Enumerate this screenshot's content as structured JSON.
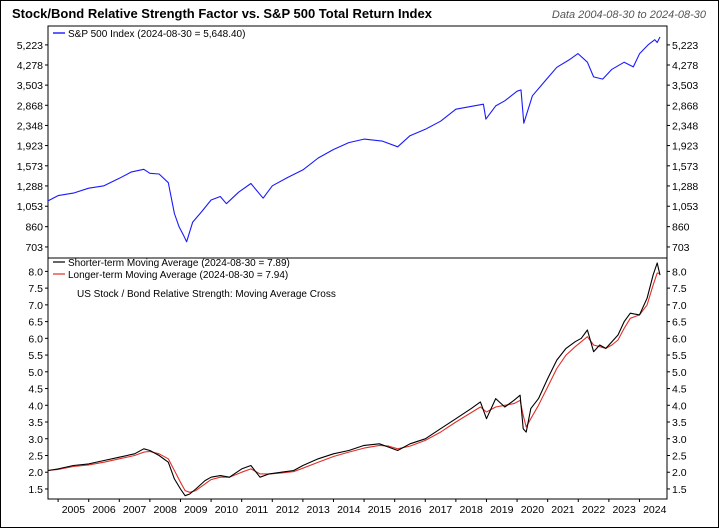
{
  "header": {
    "title": "Stock/Bond Relative Strength Factor vs. S&P 500 Total Return Index",
    "date_range": "Data 2004-08-30 to 2024-08-30"
  },
  "chart_data": [
    {
      "type": "line",
      "panel": "top",
      "yscale": "log",
      "ylim": [
        630,
        6300
      ],
      "yticks": [
        703,
        860,
        1053,
        1288,
        1573,
        1923,
        2348,
        2868,
        3503,
        4278,
        5223
      ],
      "series": [
        {
          "name": "S&P 500 Index (2024-08-30 = 5,648.40)",
          "color": "#1a1aff",
          "x": [
            2004.67,
            2005.0,
            2005.5,
            2006.0,
            2006.5,
            2007.0,
            2007.4,
            2007.8,
            2008.0,
            2008.3,
            2008.6,
            2008.8,
            2008.95,
            2009.1,
            2009.2,
            2009.4,
            2009.7,
            2010.0,
            2010.3,
            2010.5,
            2010.9,
            2011.3,
            2011.7,
            2012.0,
            2012.5,
            2013.0,
            2013.5,
            2014.0,
            2014.5,
            2015.0,
            2015.6,
            2016.1,
            2016.5,
            2017.0,
            2017.5,
            2018.0,
            2018.9,
            2018.98,
            2019.3,
            2019.6,
            2020.0,
            2020.13,
            2020.22,
            2020.5,
            2020.9,
            2021.3,
            2021.7,
            2021.99,
            2022.3,
            2022.5,
            2022.8,
            2023.1,
            2023.5,
            2023.8,
            2024.0,
            2024.3,
            2024.5,
            2024.58,
            2024.67
          ],
          "values": [
            1110,
            1170,
            1200,
            1260,
            1290,
            1390,
            1480,
            1520,
            1460,
            1450,
            1330,
            980,
            860,
            790,
            740,
            900,
            1000,
            1120,
            1160,
            1080,
            1210,
            1320,
            1140,
            1290,
            1400,
            1510,
            1700,
            1850,
            1980,
            2050,
            2010,
            1900,
            2120,
            2260,
            2450,
            2760,
            2900,
            2500,
            2850,
            3000,
            3300,
            3340,
            2400,
            3150,
            3630,
            4180,
            4500,
            4790,
            4400,
            3800,
            3720,
            4100,
            4400,
            4200,
            4780,
            5250,
            5500,
            5350,
            5650
          ]
        }
      ]
    },
    {
      "type": "line",
      "panel": "bottom",
      "annotation": "US Stock / Bond Relative Strength: Moving Average Cross",
      "ylim": [
        1.2,
        8.4
      ],
      "yticks": [
        1.5,
        2.0,
        2.5,
        3.0,
        3.5,
        4.0,
        4.5,
        5.0,
        5.5,
        6.0,
        6.5,
        7.0,
        7.5,
        8.0
      ],
      "x_range": [
        2004.67,
        2024.9
      ],
      "xticks": [
        "2005",
        "2006",
        "2007",
        "2008",
        "2009",
        "2010",
        "2011",
        "2012",
        "2013",
        "2014",
        "2015",
        "2016",
        "2017",
        "2018",
        "2019",
        "2020",
        "2021",
        "2022",
        "2023",
        "2024"
      ],
      "series": [
        {
          "name": "Shorter-term Moving Average (2024-08-30 = 7.89)",
          "color": "#000000",
          "x": [
            2004.67,
            2005.0,
            2005.5,
            2006.0,
            2006.5,
            2007.0,
            2007.5,
            2007.8,
            2008.0,
            2008.3,
            2008.6,
            2008.8,
            2009.0,
            2009.15,
            2009.3,
            2009.5,
            2009.8,
            2010.0,
            2010.3,
            2010.6,
            2011.0,
            2011.3,
            2011.6,
            2011.9,
            2012.3,
            2012.7,
            2013.0,
            2013.5,
            2014.0,
            2014.5,
            2015.0,
            2015.5,
            2015.8,
            2016.1,
            2016.5,
            2017.0,
            2017.5,
            2018.0,
            2018.5,
            2018.8,
            2019.0,
            2019.3,
            2019.6,
            2019.9,
            2020.1,
            2020.2,
            2020.3,
            2020.45,
            2020.7,
            2021.0,
            2021.3,
            2021.6,
            2021.9,
            2022.1,
            2022.3,
            2022.5,
            2022.7,
            2022.9,
            2023.1,
            2023.3,
            2023.5,
            2023.7,
            2024.0,
            2024.25,
            2024.45,
            2024.58,
            2024.67
          ],
          "values": [
            2.05,
            2.1,
            2.2,
            2.25,
            2.35,
            2.45,
            2.55,
            2.7,
            2.65,
            2.5,
            2.3,
            1.8,
            1.5,
            1.3,
            1.35,
            1.5,
            1.75,
            1.85,
            1.9,
            1.85,
            2.1,
            2.2,
            1.85,
            1.95,
            2.0,
            2.05,
            2.2,
            2.4,
            2.55,
            2.65,
            2.8,
            2.85,
            2.75,
            2.65,
            2.85,
            3.0,
            3.3,
            3.6,
            3.9,
            4.1,
            3.6,
            4.2,
            3.95,
            4.15,
            4.3,
            3.3,
            3.2,
            3.9,
            4.2,
            4.8,
            5.35,
            5.7,
            5.9,
            6.0,
            6.25,
            5.6,
            5.8,
            5.7,
            5.9,
            6.1,
            6.5,
            6.75,
            6.7,
            7.2,
            7.9,
            8.25,
            7.89
          ]
        },
        {
          "name": "Longer-term Moving Average (2024-08-30 = 7.94)",
          "color": "#e0302a",
          "x": [
            2004.67,
            2005.0,
            2005.5,
            2006.0,
            2006.5,
            2007.0,
            2007.5,
            2007.8,
            2008.0,
            2008.3,
            2008.6,
            2008.8,
            2009.0,
            2009.15,
            2009.3,
            2009.5,
            2009.8,
            2010.0,
            2010.3,
            2010.6,
            2011.0,
            2011.3,
            2011.6,
            2011.9,
            2012.3,
            2012.7,
            2013.0,
            2013.5,
            2014.0,
            2014.5,
            2015.0,
            2015.5,
            2015.8,
            2016.1,
            2016.5,
            2017.0,
            2017.5,
            2018.0,
            2018.5,
            2018.8,
            2019.0,
            2019.3,
            2019.6,
            2019.9,
            2020.1,
            2020.2,
            2020.3,
            2020.45,
            2020.7,
            2021.0,
            2021.3,
            2021.6,
            2021.9,
            2022.1,
            2022.3,
            2022.5,
            2022.7,
            2022.9,
            2023.1,
            2023.3,
            2023.5,
            2023.7,
            2024.0,
            2024.25,
            2024.45,
            2024.58,
            2024.67
          ],
          "values": [
            2.05,
            2.08,
            2.17,
            2.22,
            2.3,
            2.4,
            2.5,
            2.6,
            2.62,
            2.55,
            2.4,
            2.05,
            1.7,
            1.45,
            1.4,
            1.45,
            1.65,
            1.78,
            1.85,
            1.85,
            2.0,
            2.1,
            1.95,
            1.95,
            1.98,
            2.02,
            2.12,
            2.3,
            2.47,
            2.6,
            2.72,
            2.8,
            2.78,
            2.7,
            2.78,
            2.95,
            3.2,
            3.5,
            3.78,
            3.95,
            3.8,
            3.95,
            4.0,
            4.05,
            4.15,
            3.7,
            3.35,
            3.6,
            4.0,
            4.55,
            5.1,
            5.5,
            5.75,
            5.9,
            6.05,
            5.8,
            5.75,
            5.7,
            5.8,
            5.95,
            6.3,
            6.6,
            6.7,
            7.0,
            7.6,
            7.95,
            7.94
          ]
        }
      ]
    }
  ]
}
